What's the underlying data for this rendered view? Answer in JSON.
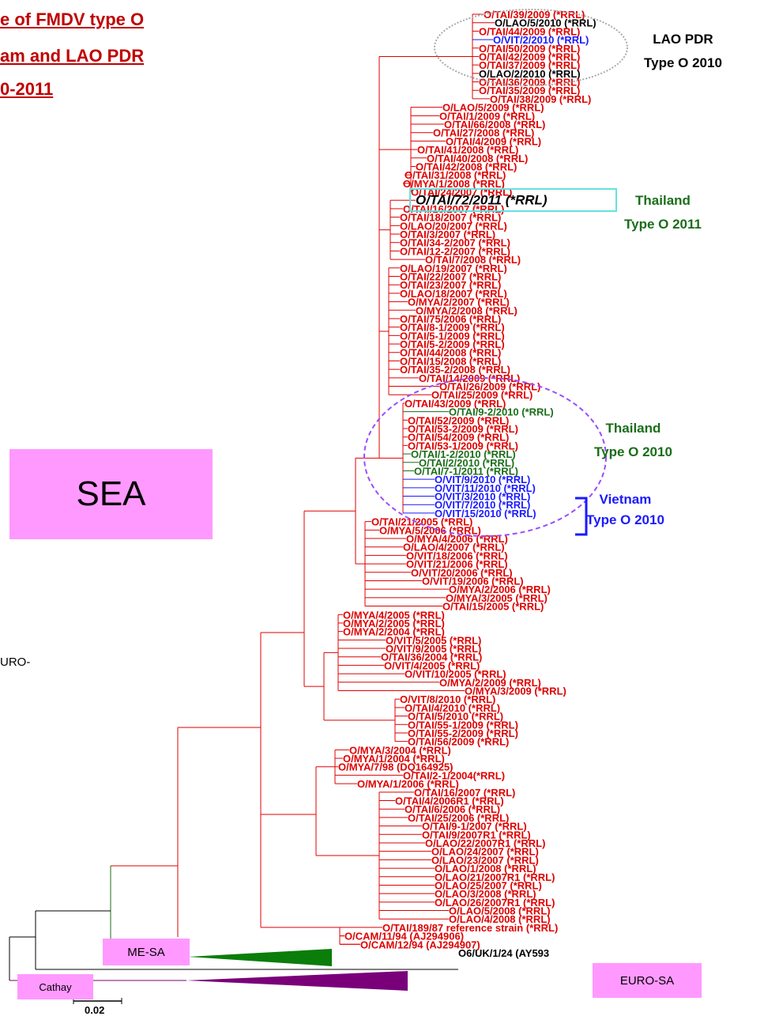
{
  "title": {
    "line1": "e of FMDV type O",
    "line2": "am and LAO PDR",
    "line3": "0-2011"
  },
  "annotations": {
    "lao": {
      "line1": "LAO PDR",
      "line2": "Type O  2010",
      "color": "#000000"
    },
    "thai2011": {
      "line1": "Thailand",
      "line2": "Type O  2011",
      "color": "#1a6e1a"
    },
    "thai2010": {
      "line1": "Thailand",
      "line2": "Type O  2010",
      "color": "#1a6e1a"
    },
    "vietnam": {
      "line1": "Vietnam",
      "line2": "Type O  2010",
      "color": "#1a1aff"
    },
    "euro_partial": "URO-"
  },
  "clades": {
    "sea": "SEA",
    "me_sa": "ME-SA",
    "cathay": "Cathay",
    "euro_sa": "EURO-SA"
  },
  "scale_bar": "0.02",
  "colors": {
    "red": "#e00000",
    "black": "#000000",
    "blue": "#1a1aff",
    "green": "#1a6e1a",
    "me_sa_triangle": "#0a7d0a",
    "cathay_triangle": "#7a007a",
    "box_fill": "#ff99ff"
  },
  "leaves": [
    {
      "label": "O/TAI/39/2009 (*RRL)",
      "color": "red"
    },
    {
      "label": "O/LAO/5/2010 (*RRL)",
      "color": "black"
    },
    {
      "label": "O/TAI/44/2009 (*RRL)",
      "color": "red"
    },
    {
      "label": "O/VIT/2/2010 (*RRL)",
      "color": "blue"
    },
    {
      "label": "O/TAI/50/2009 (*RRL)",
      "color": "red"
    },
    {
      "label": "O/TAI/42/2009 (*RRL)",
      "color": "red"
    },
    {
      "label": "O/TAI/37/2009 (*RRL)",
      "color": "red"
    },
    {
      "label": "O/LAO/2/2010 (*RRL)",
      "color": "black"
    },
    {
      "label": "O/TAI/36/2009 (*RRL)",
      "color": "red"
    },
    {
      "label": "O/TAI/35/2009 (*RRL)",
      "color": "red"
    },
    {
      "label": "O/TAI/38/2009 (*RRL)",
      "color": "red"
    },
    {
      "label": "O/LAO/5/2009 (*RRL)",
      "color": "red"
    },
    {
      "label": "O/TAI/1/2009 (*RRL)",
      "color": "red"
    },
    {
      "label": "O/TAI/66/2008 (*RRL)",
      "color": "red"
    },
    {
      "label": "O/TAI/27/2008 (*RRL)",
      "color": "red"
    },
    {
      "label": "O/TAI/4/2009 (*RRL)",
      "color": "red"
    },
    {
      "label": "O/TAI/41/2008 (*RRL)",
      "color": "red"
    },
    {
      "label": "O/TAI/40/2008 (*RRL)",
      "color": "red"
    },
    {
      "label": "O/TAI/42/2008 (*RRL)",
      "color": "red"
    },
    {
      "label": "O/TAI/31/2008 (*RRL)",
      "color": "red"
    },
    {
      "label": "O/MYA/1/2008 (*RRL)",
      "color": "red"
    },
    {
      "label": "O/TAI/24/2007 (*RRL)",
      "color": "red"
    },
    {
      "label": "O/TAI/72/2011 (*RRL)",
      "color": "black",
      "big": true
    },
    {
      "label": "O/TAI/16/2007 (*RRL)",
      "color": "red"
    },
    {
      "label": "O/TAI/18/2007 (*RRL)",
      "color": "red"
    },
    {
      "label": "O/LAO/20/2007 (*RRL)",
      "color": "red"
    },
    {
      "label": "O/TAI/3/2007 (*RRL)",
      "color": "red"
    },
    {
      "label": "O/TAI/34-2/2007 (*RRL)",
      "color": "red"
    },
    {
      "label": "O/TAI/12-2/2007 (*RRL)",
      "color": "red"
    },
    {
      "label": "O/TAI/7/2008 (*RRL)",
      "color": "red"
    },
    {
      "label": "O/LAO/19/2007 (*RRL)",
      "color": "red"
    },
    {
      "label": "O/TAI/22/2007 (*RRL)",
      "color": "red"
    },
    {
      "label": "O/TAI/23/2007 (*RRL)",
      "color": "red"
    },
    {
      "label": "O/LAO/18/2007 (*RRL)",
      "color": "red"
    },
    {
      "label": "O/MYA/2/2007 (*RRL)",
      "color": "red"
    },
    {
      "label": "O/MYA/2/2008 (*RRL)",
      "color": "red"
    },
    {
      "label": "O/TAI/75/2006 (*RRL)",
      "color": "red"
    },
    {
      "label": "O/TAI/8-1/2009 (*RRL)",
      "color": "red"
    },
    {
      "label": "O/TAI/5-1/2009 (*RRL)",
      "color": "red"
    },
    {
      "label": "O/TAI/5-2/2009 (*RRL)",
      "color": "red"
    },
    {
      "label": "O/TAI/44/2008 (*RRL)",
      "color": "red"
    },
    {
      "label": "O/TAI/15/2008 (*RRL)",
      "color": "red"
    },
    {
      "label": "O/TAI/35-2/2008 (*RRL)",
      "color": "red"
    },
    {
      "label": "O/TAI/14/2009 (*RRL)",
      "color": "red"
    },
    {
      "label": "O/TAI/26/2009 (*RRL)",
      "color": "red"
    },
    {
      "label": "O/TAI/25/2009 (*RRL)",
      "color": "red"
    },
    {
      "label": "O/TAI/43/2009 (*RRL)",
      "color": "red"
    },
    {
      "label": "O/TAI/9-2/2010 (*RRL)",
      "color": "green"
    },
    {
      "label": "O/TAI/52/2009 (*RRL)",
      "color": "red"
    },
    {
      "label": "O/TAI/53-2/2009 (*RRL)",
      "color": "red"
    },
    {
      "label": "O/TAI/54/2009 (*RRL)",
      "color": "red"
    },
    {
      "label": "O/TAI/53-1/2009 (*RRL)",
      "color": "red"
    },
    {
      "label": "O/TAI/1-2/2010 (*RRL)",
      "color": "green"
    },
    {
      "label": "O/TAI/2/2010 (*RRL)",
      "color": "green"
    },
    {
      "label": "O/TAI/7-1/2011 (*RRL)",
      "color": "green"
    },
    {
      "label": "O/VIT/9/2010 (*RRL)",
      "color": "blue"
    },
    {
      "label": "O/VIT/11/2010 (*RRL)",
      "color": "blue"
    },
    {
      "label": "O/VIT/3/2010 (*RRL)",
      "color": "blue"
    },
    {
      "label": "O/VIT/7/2010 (*RRL)",
      "color": "blue"
    },
    {
      "label": "O/VIT/15/2010 (*RRL)",
      "color": "blue"
    },
    {
      "label": "O/TAI/21/2005 (*RRL)",
      "color": "red"
    },
    {
      "label": "O/MYA/5/2006 (*RRL)",
      "color": "red"
    },
    {
      "label": "O/MYA/4/2006 (*RRL)",
      "color": "red"
    },
    {
      "label": "O/LAO/4/2007 (*RRL)",
      "color": "red"
    },
    {
      "label": "O/VIT/18/2006 (*RRL)",
      "color": "red"
    },
    {
      "label": "O/VIT/21/2006 (*RRL)",
      "color": "red"
    },
    {
      "label": "O/VIT/20/2006 (*RRL)",
      "color": "red"
    },
    {
      "label": "O/VIT/19/2006 (*RRL)",
      "color": "red"
    },
    {
      "label": "O/MYA/2/2006 (*RRL)",
      "color": "red"
    },
    {
      "label": "O/MYA/3/2005 (*RRL)",
      "color": "red"
    },
    {
      "label": "O/TAI/15/2005 (*RRL)",
      "color": "red"
    },
    {
      "label": "O/MYA/4/2005 (*RRL)",
      "color": "red"
    },
    {
      "label": "O/MYA/2/2005 (*RRL)",
      "color": "red"
    },
    {
      "label": "O/MYA/2/2004 (*RRL)",
      "color": "red"
    },
    {
      "label": "O/VIT/5/2005 (*RRL)",
      "color": "red"
    },
    {
      "label": "O/VIT/9/2005 (*RRL)",
      "color": "red"
    },
    {
      "label": "O/TAI/36/2004 (*RRL)",
      "color": "red"
    },
    {
      "label": "O/VIT/4/2005 (*RRL)",
      "color": "red"
    },
    {
      "label": "O/VIT/10/2005 (*RRL)",
      "color": "red"
    },
    {
      "label": "O/MYA/2/2009 (*RRL)",
      "color": "red"
    },
    {
      "label": "O/MYA/3/2009 (*RRL)",
      "color": "red"
    },
    {
      "label": "O/VIT/8/2010 (*RRL)",
      "color": "red"
    },
    {
      "label": "O/TAI/4/2010 (*RRL)",
      "color": "red"
    },
    {
      "label": "O/TAI/5/2010 (*RRL)",
      "color": "red"
    },
    {
      "label": "O/TAI/55-1/2009 (*RRL)",
      "color": "red"
    },
    {
      "label": "O/TAI/55-2/2009 (*RRL)",
      "color": "red"
    },
    {
      "label": "O/TAI/56/2009 (*RRL)",
      "color": "red"
    },
    {
      "label": "O/MYA/3/2004 (*RRL)",
      "color": "red"
    },
    {
      "label": "O/MYA/1/2004 (*RRL)",
      "color": "red"
    },
    {
      "label": "O/MYA/7/98 (DQ164925)",
      "color": "red"
    },
    {
      "label": "O/TAI/2-1/2004(*RRL)",
      "color": "red"
    },
    {
      "label": "O/MYA/1/2006 (*RRL)",
      "color": "red"
    },
    {
      "label": "O/TAI/16/2007 (*RRL)",
      "color": "red"
    },
    {
      "label": "O/TAI/4/2006R1 (*RRL)",
      "color": "red"
    },
    {
      "label": "O/TAI/6/2006 (*RRL)",
      "color": "red"
    },
    {
      "label": "O/TAI/25/2006 (*RRL)",
      "color": "red"
    },
    {
      "label": "O/TAI/9-1/2007 (*RRL)",
      "color": "red"
    },
    {
      "label": "O/TAI/9/2007R1 (*RRL)",
      "color": "red"
    },
    {
      "label": "O/LAO/22/2007R1 (*RRL)",
      "color": "red"
    },
    {
      "label": "O/LAO/24/2007 (*RRL)",
      "color": "red"
    },
    {
      "label": "O/LAO/23/2007 (*RRL)",
      "color": "red"
    },
    {
      "label": "O/LAO/1/2008 (*RRL)",
      "color": "red"
    },
    {
      "label": "O/LAO/21/2007R1 (*RRL)",
      "color": "red"
    },
    {
      "label": "O/LAO/25/2007 (*RRL)",
      "color": "red"
    },
    {
      "label": "O/LAO/3/2008 (*RRL)",
      "color": "red"
    },
    {
      "label": "O/LAO/26/2007R1 (*RRL)",
      "color": "red"
    },
    {
      "label": "O/LAO/5/2008 (*RRL)",
      "color": "red"
    },
    {
      "label": "O/LAO/4/2008 (*RRL)",
      "color": "red"
    },
    {
      "label": "O/TAI/189/87 reference strain (*RRL)",
      "color": "red"
    },
    {
      "label": "O/CAM/11/94 (AJ294906)",
      "color": "red"
    },
    {
      "label": "O/CAM/12/94 (AJ294907)",
      "color": "red"
    },
    {
      "label": "O6/UK/1/24 (AY593",
      "color": "black"
    }
  ]
}
